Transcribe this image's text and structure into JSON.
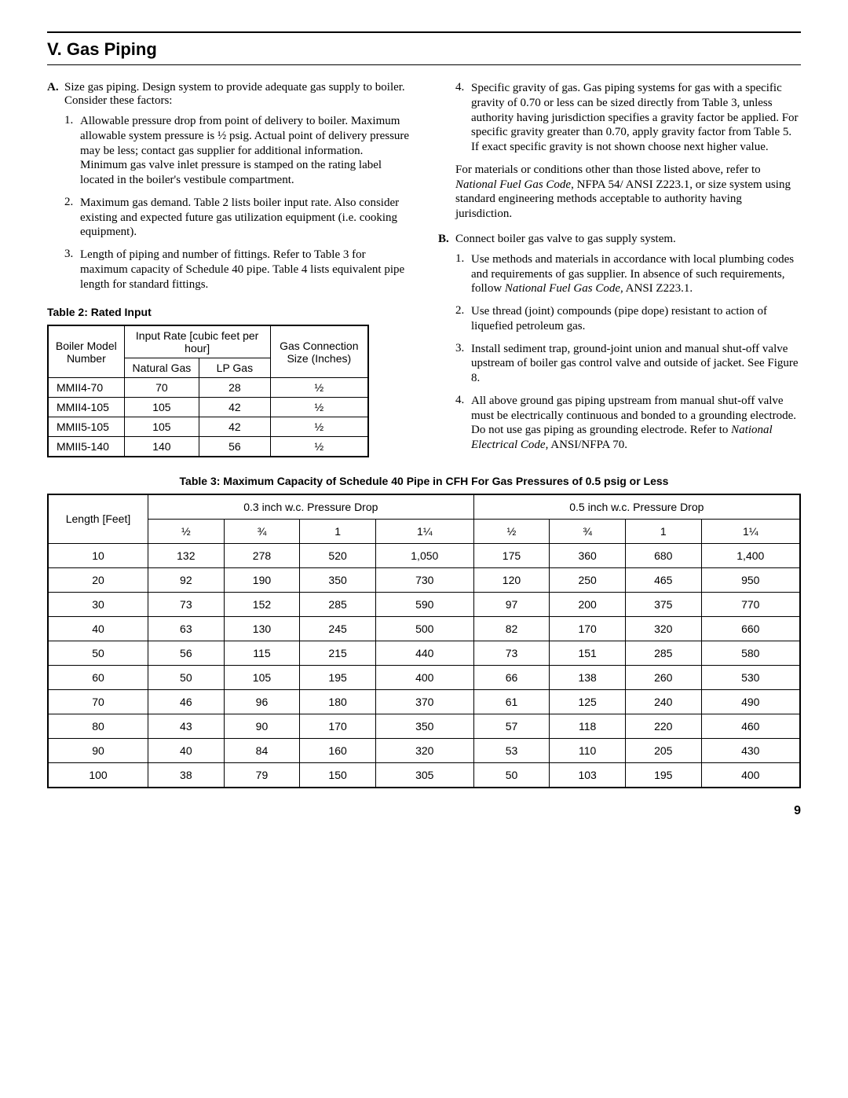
{
  "section_title": "V. Gas Piping",
  "page_number": "9",
  "half": "½",
  "A": {
    "letter": "A.",
    "intro": "Size gas piping. Design system to provide adequate gas supply to boiler. Consider these factors:",
    "items": {
      "1": "Allowable pressure drop from point of delivery to boiler. Maximum allowable system pressure is ½ psig. Actual point of delivery pressure may be less; contact gas supplier for additional information. Minimum gas valve inlet pressure is stamped on the rating label located in the boiler's vestibule compartment.",
      "2": "Maximum gas demand. Table 2 lists boiler input rate. Also consider existing and expected future gas utilization equipment (i.e. cooking equipment).",
      "3": "Length of piping and number of fittings. Refer to Table 3 for maximum capacity of Schedule 40 pipe. Table 4 lists equivalent pipe length for standard fittings.",
      "4": "Specific gravity of gas. Gas piping systems for gas with a specific gravity of 0.70 or less can be sized directly from Table 3, unless authority having jurisdiction specifies a gravity factor be applied. For specific gravity greater than 0.70, apply gravity factor from Table 5. If exact specific gravity is not shown choose next higher value."
    },
    "note_pre": "For materials or conditions other than those listed above, refer to ",
    "note_ital": "National Fuel Gas Code",
    "note_post": ", NFPA 54/ ANSI Z223.1, or size system using standard engineering methods acceptable to authority having jurisdiction."
  },
  "B": {
    "letter": "B.",
    "intro": "Connect boiler gas valve to gas supply system.",
    "items": {
      "1_pre": "Use methods and materials in accordance with local plumbing codes and requirements of gas supplier. In absence of such requirements, follow ",
      "1_ital": "National Fuel Gas Code",
      "1_post": ", ANSI Z223.1.",
      "2": "Use thread (joint) compounds (pipe dope) resistant to action of liquefied petroleum gas.",
      "3": "Install sediment trap, ground-joint union and manual shut-off valve upstream of boiler gas control valve and outside of jacket. See Figure 8.",
      "4_pre": "All above ground gas piping upstream from manual shut-off valve must be electrically continuous and bonded to a grounding electrode. Do not use gas piping as grounding electrode. Refer to ",
      "4_ital": "National Electrical Code",
      "4_post": ", ANSI/NFPA 70."
    }
  },
  "table2": {
    "caption": "Table 2: Rated Input",
    "headers": {
      "boiler": "Boiler Model Number",
      "input_rate": "Input Rate [cubic feet per hour]",
      "natural": "Natural Gas",
      "lp": "LP Gas",
      "conn": "Gas Connection Size (Inches)"
    },
    "rows": [
      {
        "model": "MMII4-70",
        "nat": "70",
        "lp": "28",
        "conn": "½"
      },
      {
        "model": "MMII4-105",
        "nat": "105",
        "lp": "42",
        "conn": "½"
      },
      {
        "model": "MMII5-105",
        "nat": "105",
        "lp": "42",
        "conn": "½"
      },
      {
        "model": "MMII5-140",
        "nat": "140",
        "lp": "56",
        "conn": "½"
      }
    ]
  },
  "table3": {
    "caption": "Table 3:   Maximum Capacity of Schedule 40 Pipe in CFH For Gas Pressures of 0.5 psig or Less",
    "length_label": "Length [Feet]",
    "drop03": "0.3 inch w.c. Pressure Drop",
    "drop05": "0.5 inch w.c. Pressure Drop",
    "sizes": {
      "a": "½",
      "b": "¾",
      "c": "1",
      "d": "1¼"
    },
    "rows": [
      {
        "len": "10",
        "a1": "132",
        "b1": "278",
        "c1": "520",
        "d1": "1,050",
        "a2": "175",
        "b2": "360",
        "c2": "680",
        "d2": "1,400"
      },
      {
        "len": "20",
        "a1": "92",
        "b1": "190",
        "c1": "350",
        "d1": "730",
        "a2": "120",
        "b2": "250",
        "c2": "465",
        "d2": "950"
      },
      {
        "len": "30",
        "a1": "73",
        "b1": "152",
        "c1": "285",
        "d1": "590",
        "a2": "97",
        "b2": "200",
        "c2": "375",
        "d2": "770"
      },
      {
        "len": "40",
        "a1": "63",
        "b1": "130",
        "c1": "245",
        "d1": "500",
        "a2": "82",
        "b2": "170",
        "c2": "320",
        "d2": "660"
      },
      {
        "len": "50",
        "a1": "56",
        "b1": "115",
        "c1": "215",
        "d1": "440",
        "a2": "73",
        "b2": "151",
        "c2": "285",
        "d2": "580"
      },
      {
        "len": "60",
        "a1": "50",
        "b1": "105",
        "c1": "195",
        "d1": "400",
        "a2": "66",
        "b2": "138",
        "c2": "260",
        "d2": "530"
      },
      {
        "len": "70",
        "a1": "46",
        "b1": "96",
        "c1": "180",
        "d1": "370",
        "a2": "61",
        "b2": "125",
        "c2": "240",
        "d2": "490"
      },
      {
        "len": "80",
        "a1": "43",
        "b1": "90",
        "c1": "170",
        "d1": "350",
        "a2": "57",
        "b2": "118",
        "c2": "220",
        "d2": "460"
      },
      {
        "len": "90",
        "a1": "40",
        "b1": "84",
        "c1": "160",
        "d1": "320",
        "a2": "53",
        "b2": "110",
        "c2": "205",
        "d2": "430"
      },
      {
        "len": "100",
        "a1": "38",
        "b1": "79",
        "c1": "150",
        "d1": "305",
        "a2": "50",
        "b2": "103",
        "c2": "195",
        "d2": "400"
      }
    ]
  }
}
